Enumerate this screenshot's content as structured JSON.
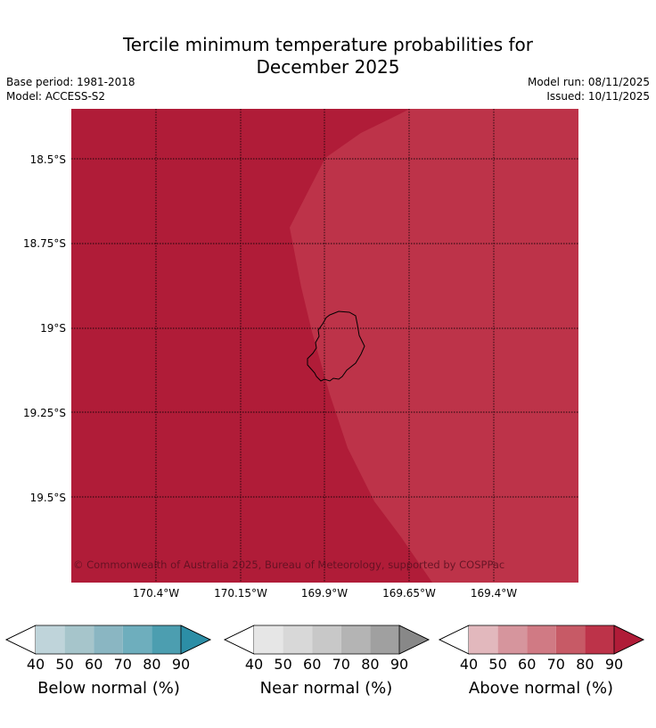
{
  "title_line1": "Tercile minimum temperature probabilities for",
  "title_line2": "December 2025",
  "base_period": "Base period: 1981-2018",
  "model": "Model: ACCESS-S2",
  "model_run": "Model run: 08/11/2025",
  "issued": "Issued: 10/11/2025",
  "map": {
    "latitude_labels": [
      "18.5°S",
      "18.75°S",
      "19°S",
      "19.25°S",
      "19.5°S"
    ],
    "longitude_labels": [
      "170.4°W",
      "170.15°W",
      "169.9°W",
      "169.65°W",
      "169.4°W"
    ],
    "copyright": "© Commonwealth of Australia 2025, Bureau of Meteorology, supported by COSPPac",
    "regions": [
      {
        "category": "above",
        "probability_bin": "80-90",
        "color": "#bd3349"
      },
      {
        "category": "above",
        "probability_bin": ">90",
        "color": "#b01c38"
      }
    ],
    "coastline_color": "#000000"
  },
  "colorbars": [
    {
      "label": "Below normal (%)",
      "ticks": [
        "40",
        "50",
        "60",
        "70",
        "80",
        "90"
      ],
      "colors": [
        "#ffffff",
        "#bfd4da",
        "#a6c5cb",
        "#8ab6c2",
        "#6eaebd",
        "#4c9eb0",
        "#2c8ea6"
      ]
    },
    {
      "label": "Near normal (%)",
      "ticks": [
        "40",
        "50",
        "60",
        "70",
        "80",
        "90"
      ],
      "colors": [
        "#ffffff",
        "#e6e6e6",
        "#d8d8d8",
        "#c8c8c8",
        "#b4b4b4",
        "#a0a0a0",
        "#888888"
      ]
    },
    {
      "label": "Above normal (%)",
      "ticks": [
        "40",
        "50",
        "60",
        "70",
        "80",
        "90"
      ],
      "colors": [
        "#ffffff",
        "#e2b8bd",
        "#d6959d",
        "#d07a84",
        "#c75a66",
        "#bd3349",
        "#b01c38"
      ]
    }
  ]
}
